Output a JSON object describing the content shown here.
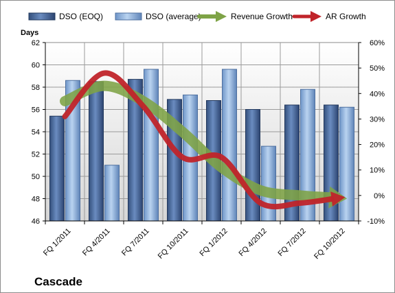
{
  "chart_data": {
    "type": "bar",
    "title": "Cascade",
    "ylabel": "Days",
    "categories": [
      "FQ 1/2011",
      "FQ 4/2011",
      "FQ 7/2011",
      "FQ 10/2011",
      "FQ 1/2012",
      "FQ 4/2012",
      "FQ 7/2012",
      "FQ 10/2012"
    ],
    "y_left": {
      "min": 46,
      "max": 62,
      "step": 2,
      "ticks": [
        "46",
        "48",
        "50",
        "52",
        "54",
        "56",
        "58",
        "60",
        "62"
      ]
    },
    "y_right": {
      "min": -10,
      "max": 60,
      "step": 10,
      "ticks": [
        "-10%",
        "0%",
        "10%",
        "20%",
        "30%",
        "40%",
        "50%",
        "60%"
      ]
    },
    "grid": true,
    "legend_position": "top",
    "series": [
      {
        "name": "DSO (EOQ)",
        "kind": "bar",
        "axis": "left",
        "color": "#4a6b9e",
        "values": [
          55.4,
          58.5,
          58.7,
          56.9,
          56.8,
          56.0,
          56.4,
          56.4
        ]
      },
      {
        "name": "DSO (average)",
        "kind": "bar",
        "axis": "left",
        "color": "#8fb4df",
        "values": [
          58.6,
          51.0,
          59.6,
          57.3,
          59.6,
          52.7,
          57.8,
          56.2
        ]
      },
      {
        "name": "Revenue Growth",
        "kind": "line-arrow",
        "axis": "right",
        "color": "#7ea346",
        "values": [
          37,
          43,
          37,
          25,
          11,
          2,
          0,
          -1
        ]
      },
      {
        "name": "AR Growth",
        "kind": "line-arrow",
        "axis": "right",
        "color": "#c0242a",
        "values": [
          31,
          48,
          35,
          15,
          15,
          -3,
          -3,
          -1
        ]
      }
    ]
  }
}
